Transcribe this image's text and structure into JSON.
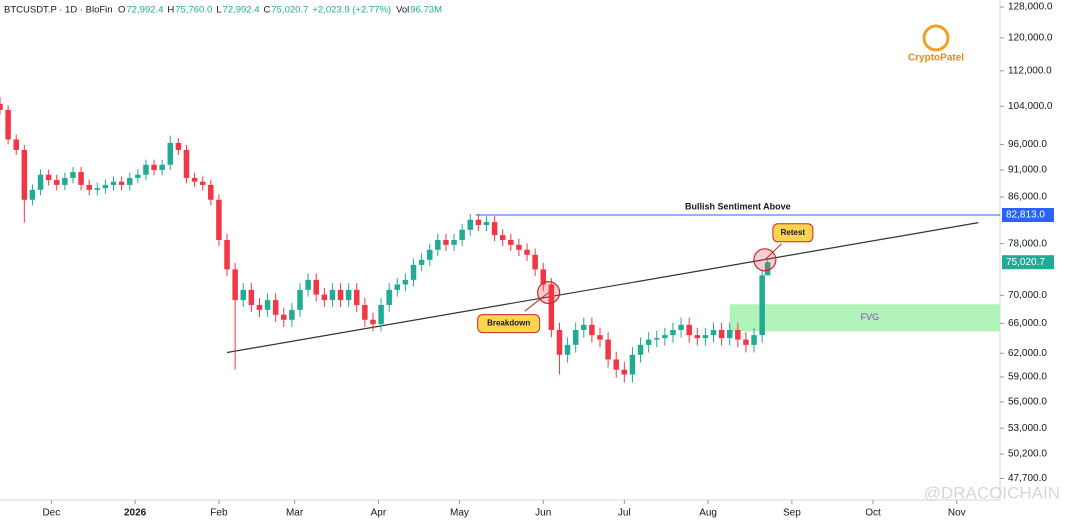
{
  "header": {
    "symbol": "BTCUSDT.P · 1D · BloFin",
    "ohlc": [
      {
        "key": "O",
        "value": "72,992.4"
      },
      {
        "key": "H",
        "value": "75,760.0"
      },
      {
        "key": "L",
        "value": "72,992.4"
      },
      {
        "key": "C",
        "value": "75,020.7"
      }
    ],
    "change": "+2,023.9 (+2.77%)",
    "volume_key": "Vol",
    "volume": "96.73M"
  },
  "watermarks": [
    "CryptoPatel",
    "@DRACOICHAIN"
  ],
  "chart_data": {
    "type": "candlestick",
    "log_scale": true,
    "up_color": "#22ab94",
    "down_color": "#f23645",
    "xlim": [
      0,
      370
    ],
    "xticks": [
      {
        "value": 19,
        "label": "Dec"
      },
      {
        "value": 50,
        "label": "2026"
      },
      {
        "value": 81,
        "label": "Feb"
      },
      {
        "value": 109,
        "label": "Mar"
      },
      {
        "value": 140,
        "label": "Apr"
      },
      {
        "value": 170,
        "label": "May"
      },
      {
        "value": 201,
        "label": "Jun"
      },
      {
        "value": 231,
        "label": "Jul"
      },
      {
        "value": 262,
        "label": "Aug"
      },
      {
        "value": 293,
        "label": "Sep"
      },
      {
        "value": 323,
        "label": "Oct"
      },
      {
        "value": 354,
        "label": "Nov"
      }
    ],
    "ylim": [
      45600,
      129900
    ],
    "yticks": [
      {
        "value": 128000,
        "label": "128,000.0"
      },
      {
        "value": 120000,
        "label": "120,000.0"
      },
      {
        "value": 112000,
        "label": "112,000.0"
      },
      {
        "value": 104000,
        "label": "104,000.0"
      },
      {
        "value": 96000,
        "label": "96,000.0"
      },
      {
        "value": 91000,
        "label": "91,000.0"
      },
      {
        "value": 86000,
        "label": "86,000.0"
      },
      {
        "value": 78000,
        "label": "78,000.0"
      },
      {
        "value": 70000,
        "label": "70,000.0"
      },
      {
        "value": 66000,
        "label": "66,000.0"
      },
      {
        "value": 62000,
        "label": "62,000.0"
      },
      {
        "value": 59000,
        "label": "59,000.0"
      },
      {
        "value": 56000,
        "label": "56,000.0"
      },
      {
        "value": 53000,
        "label": "53,000.0"
      },
      {
        "value": 50200,
        "label": "50,200.0"
      },
      {
        "value": 47700,
        "label": "47,700.0"
      }
    ],
    "x": [
      0,
      3,
      6,
      9,
      12,
      15,
      18,
      21,
      24,
      27,
      30,
      33,
      36,
      39,
      42,
      45,
      48,
      51,
      54,
      57,
      60,
      63,
      66,
      69,
      72,
      75,
      78,
      81,
      84,
      87,
      90,
      93,
      96,
      99,
      102,
      105,
      108,
      111,
      114,
      117,
      120,
      123,
      126,
      129,
      132,
      135,
      138,
      141,
      144,
      147,
      150,
      153,
      156,
      159,
      162,
      165,
      168,
      171,
      174,
      177,
      180,
      183,
      186,
      189,
      192,
      195,
      198,
      201,
      204,
      207,
      210,
      213,
      216,
      219,
      222,
      225,
      228,
      231,
      234,
      237,
      240,
      243,
      246,
      249,
      252,
      255,
      258,
      261,
      264,
      267,
      270,
      273,
      276,
      279,
      282,
      284
    ],
    "open": [
      104500,
      103200,
      97000,
      94900,
      85500,
      87300,
      90100,
      89100,
      88200,
      89500,
      90600,
      88200,
      87300,
      87600,
      88200,
      88800,
      88200,
      89500,
      90100,
      92000,
      91000,
      92000,
      96300,
      94900,
      89500,
      88800,
      88200,
      85500,
      78600,
      73900,
      69300,
      70800,
      68600,
      67900,
      69300,
      67200,
      66500,
      67900,
      70800,
      72300,
      70100,
      69300,
      70800,
      69300,
      70800,
      68600,
      66500,
      65900,
      68600,
      70800,
      71600,
      72300,
      74600,
      75400,
      77000,
      78600,
      77800,
      78600,
      80300,
      82000,
      81100,
      81600,
      79400,
      78600,
      77800,
      77000,
      76200,
      73900,
      71600,
      65100,
      61800,
      63100,
      65100,
      65800,
      64400,
      63800,
      61200,
      59900,
      59300,
      61800,
      63100,
      63800,
      64000,
      64400,
      65100,
      65800,
      64400,
      64000,
      64400,
      65100,
      64000,
      65100,
      63800,
      63100,
      64400,
      72992.4
    ],
    "high": [
      106000,
      104200,
      98000,
      95900,
      88300,
      91100,
      91100,
      90100,
      90500,
      91600,
      91600,
      89200,
      88600,
      89200,
      89800,
      89800,
      90500,
      91100,
      93000,
      93000,
      93000,
      97800,
      97300,
      95900,
      90500,
      89800,
      89200,
      86500,
      79600,
      74900,
      71800,
      71800,
      69600,
      70300,
      70300,
      68200,
      68900,
      71800,
      73300,
      73300,
      71100,
      71800,
      71800,
      71800,
      71800,
      69600,
      67500,
      69600,
      71800,
      72600,
      73300,
      75600,
      76400,
      78000,
      79600,
      79600,
      79600,
      81300,
      83000,
      83000,
      82600,
      82600,
      80400,
      79600,
      78800,
      78000,
      77200,
      74900,
      72600,
      66100,
      64100,
      66100,
      66800,
      66800,
      65400,
      64800,
      62200,
      60900,
      62800,
      64100,
      64800,
      65000,
      65400,
      66100,
      66800,
      66800,
      65400,
      65400,
      66100,
      66100,
      66100,
      66100,
      64800,
      65400,
      73800,
      75760
    ],
    "low": [
      102200,
      96000,
      93900,
      81500,
      84500,
      86300,
      88100,
      87200,
      87200,
      88500,
      87200,
      86300,
      86300,
      86600,
      87200,
      87200,
      87200,
      88500,
      89100,
      90000,
      90000,
      91000,
      93900,
      88500,
      87800,
      87200,
      84500,
      77600,
      72900,
      59900,
      68300,
      67600,
      66900,
      66900,
      66200,
      65500,
      65500,
      66900,
      69800,
      69100,
      68300,
      68300,
      68300,
      68300,
      67600,
      65500,
      64900,
      64900,
      67600,
      69800,
      70600,
      71300,
      73600,
      74400,
      76000,
      76800,
      76800,
      77600,
      79300,
      80100,
      80100,
      78400,
      77600,
      76800,
      76000,
      75200,
      72900,
      70600,
      64100,
      59300,
      60800,
      62100,
      64100,
      63400,
      62800,
      60200,
      58900,
      58300,
      58300,
      60800,
      62100,
      62800,
      63000,
      63400,
      64100,
      63400,
      63000,
      63000,
      63400,
      63000,
      63000,
      62800,
      62100,
      62100,
      63400,
      72992.4
    ],
    "close": [
      103200,
      97000,
      94900,
      85500,
      87300,
      90100,
      89100,
      88200,
      89500,
      90600,
      88200,
      87300,
      87600,
      88200,
      88800,
      88200,
      89500,
      90100,
      92000,
      91000,
      92000,
      96300,
      94900,
      89500,
      88800,
      88200,
      85500,
      78600,
      73900,
      69300,
      70800,
      68600,
      67900,
      69300,
      67200,
      66500,
      67900,
      70800,
      72300,
      70100,
      69300,
      70800,
      69300,
      70800,
      68600,
      66500,
      65900,
      68600,
      70800,
      71600,
      72300,
      74600,
      75400,
      77000,
      78600,
      77800,
      78600,
      80300,
      82000,
      81100,
      81600,
      79400,
      78600,
      77800,
      77000,
      76200,
      73900,
      71600,
      65100,
      61800,
      63100,
      65100,
      65800,
      64400,
      63800,
      61200,
      59900,
      59300,
      61800,
      63100,
      63800,
      64000,
      64400,
      65100,
      65800,
      64400,
      64000,
      64400,
      65100,
      64000,
      65100,
      63800,
      63100,
      64400,
      72992.4,
      75020.7
    ],
    "level": {
      "value": 82813,
      "label": "82,813.0",
      "text": "Bullish Sentiment Above",
      "x_start": 176,
      "color": "#2962ff"
    },
    "last_price": {
      "value": 75020.7,
      "label": "75,020.7",
      "color": "#22ab94"
    },
    "trendline": {
      "x": [
        84,
        362
      ],
      "y": [
        62100,
        81500
      ]
    },
    "markers": [
      {
        "x": 203,
        "y": 70400,
        "label": "Breakdown"
      },
      {
        "x": 283,
        "y": 75400,
        "label": "Retest"
      }
    ],
    "zone": {
      "x": [
        270,
        370
      ],
      "y": [
        64900,
        68700
      ],
      "label": "FVG",
      "color": "#9ff0a8"
    }
  }
}
